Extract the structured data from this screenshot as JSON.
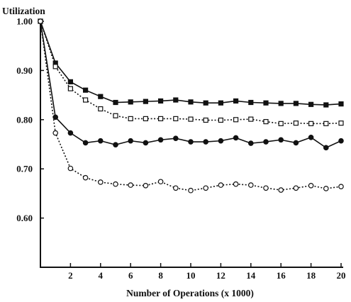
{
  "chart_data": {
    "type": "line",
    "ylabel": "Utilization",
    "xlabel": "Number of Operations (x 1000)",
    "xlim": [
      0,
      20
    ],
    "ylim": [
      0.5,
      1.0
    ],
    "x_ticks": [
      2,
      4,
      6,
      8,
      10,
      12,
      14,
      16,
      18,
      20
    ],
    "x_tick_labels": [
      "2",
      "4",
      "6",
      "8",
      "10",
      "12",
      "14",
      "16",
      "18",
      "20"
    ],
    "y_ticks": [
      0.6,
      0.7,
      0.8,
      0.9,
      1.0
    ],
    "y_tick_labels": [
      "0.60",
      "0.70",
      "0.80",
      "0.90",
      "1.00"
    ],
    "grid": false,
    "legend": "none",
    "x": [
      0,
      1,
      2,
      3,
      4,
      5,
      6,
      7,
      8,
      9,
      10,
      11,
      12,
      13,
      14,
      15,
      16,
      17,
      18,
      19,
      20
    ],
    "series": [
      {
        "marker": "filled-square",
        "line": "solid",
        "color": "#111111",
        "values": [
          1.0,
          0.915,
          0.877,
          0.86,
          0.847,
          0.835,
          0.836,
          0.837,
          0.838,
          0.84,
          0.836,
          0.834,
          0.834,
          0.838,
          0.835,
          0.834,
          0.833,
          0.833,
          0.831,
          0.83,
          0.832
        ]
      },
      {
        "marker": "open-square",
        "line": "dotted",
        "color": "#111111",
        "values": [
          1.0,
          0.908,
          0.863,
          0.84,
          0.822,
          0.808,
          0.802,
          0.802,
          0.802,
          0.802,
          0.801,
          0.799,
          0.799,
          0.8,
          0.801,
          0.796,
          0.792,
          0.793,
          0.792,
          0.792,
          0.793
        ]
      },
      {
        "marker": "filled-circle",
        "line": "solid",
        "color": "#111111",
        "values": [
          1.0,
          0.805,
          0.773,
          0.753,
          0.757,
          0.749,
          0.757,
          0.753,
          0.759,
          0.762,
          0.755,
          0.755,
          0.757,
          0.763,
          0.752,
          0.755,
          0.759,
          0.753,
          0.764,
          0.743,
          0.757
        ]
      },
      {
        "marker": "open-circle",
        "line": "dotted",
        "color": "#111111",
        "values": [
          1.0,
          0.773,
          0.701,
          0.682,
          0.673,
          0.669,
          0.667,
          0.666,
          0.674,
          0.661,
          0.656,
          0.661,
          0.667,
          0.669,
          0.667,
          0.661,
          0.657,
          0.661,
          0.666,
          0.66,
          0.664
        ]
      }
    ]
  }
}
